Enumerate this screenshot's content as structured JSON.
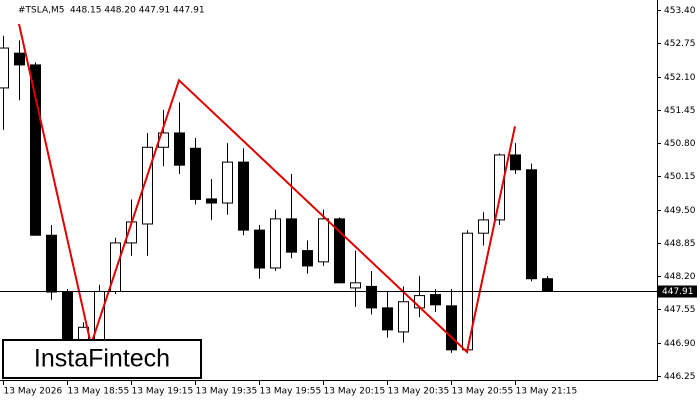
{
  "chart_data": {
    "type": "candlestick",
    "symbol": "#TSLA,M5",
    "ohlc_text": "448.15 448.20 447.91 447.91",
    "logo": "InstaFintech",
    "categories": [
      "13 May 2026",
      null,
      null,
      null,
      "13 May 18:55",
      null,
      null,
      null,
      "13 May 19:15",
      null,
      null,
      null,
      "13 May 19:35",
      null,
      null,
      null,
      "13 May 19:55",
      null,
      null,
      null,
      "13 May 20:15",
      null,
      null,
      null,
      "13 May 20:35",
      null,
      null,
      null,
      "13 May 20:55",
      null,
      null,
      null,
      "13 May 21:15",
      null,
      null
    ],
    "open": [
      451.88,
      452.56,
      452.33,
      449.0,
      447.89,
      446.7,
      446.9,
      447.9,
      448.85,
      449.22,
      450.72,
      451.0,
      450.7,
      449.71,
      449.63,
      450.43,
      449.1,
      448.36,
      449.32,
      448.7,
      448.48,
      449.32,
      447.97,
      448.0,
      447.58,
      447.11,
      447.58,
      447.84,
      447.62,
      446.76,
      449.04,
      449.3,
      450.57,
      450.28,
      448.15
    ],
    "high": [
      452.9,
      452.81,
      452.38,
      449.2,
      447.95,
      447.3,
      448.03,
      448.95,
      449.7,
      451.0,
      451.45,
      451.6,
      450.9,
      450.1,
      450.8,
      450.7,
      449.2,
      449.5,
      450.2,
      448.9,
      449.5,
      449.35,
      448.7,
      448.3,
      447.9,
      448.0,
      448.2,
      447.95,
      447.95,
      449.1,
      449.45,
      450.6,
      450.8,
      450.4,
      448.2
    ],
    "low": [
      451.06,
      451.64,
      449.0,
      447.74,
      446.6,
      446.6,
      446.85,
      447.85,
      448.6,
      448.6,
      450.35,
      450.2,
      449.6,
      449.3,
      449.4,
      449.0,
      448.15,
      448.3,
      448.55,
      448.25,
      448.4,
      448.07,
      447.6,
      447.45,
      447.0,
      446.9,
      447.4,
      447.5,
      446.7,
      446.7,
      448.8,
      449.2,
      450.2,
      448.1,
      447.9
    ],
    "close": [
      452.66,
      452.33,
      449.0,
      447.89,
      446.92,
      447.2,
      447.9,
      448.85,
      449.26,
      450.72,
      451.0,
      450.37,
      449.7,
      449.63,
      450.43,
      449.1,
      448.36,
      449.32,
      448.67,
      448.4,
      449.32,
      448.07,
      448.07,
      447.58,
      447.15,
      447.7,
      447.82,
      447.64,
      446.76,
      449.04,
      449.3,
      450.57,
      450.28,
      448.15,
      447.91
    ],
    "up_color": "#ffffff",
    "down_color": "#000000",
    "pattern": {
      "color": "#e00000",
      "x": [
        1,
        5.5,
        11,
        29,
        32
      ],
      "y": [
        453.13,
        446.86,
        452.03,
        446.72,
        451.13
      ]
    },
    "current_price": {
      "value": 447.91,
      "label": "447.91"
    },
    "ylim": [
      446.17,
      453.56
    ],
    "yticks": [
      {
        "value": 453.4,
        "label": "453.40"
      },
      452.75,
      {
        "value": 452.1,
        "label": "452.10"
      },
      451.45,
      {
        "value": 450.8,
        "label": "450.80"
      },
      450.15,
      {
        "value": 449.5,
        "label": "449.50"
      },
      448.85,
      {
        "value": 448.2,
        "label": "448.20"
      },
      447.55,
      {
        "value": 446.9,
        "label": "446.90"
      },
      446.25
    ]
  }
}
